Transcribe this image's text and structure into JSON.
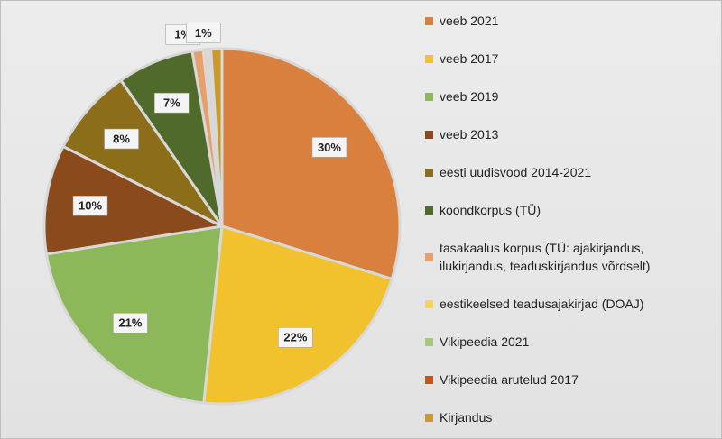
{
  "chart_data": {
    "type": "pie",
    "categories": [
      "veeb 2021",
      "veeb 2017",
      "veeb 2019",
      "veeb 2013",
      "eesti uudisvood 2014-2021",
      "koondkorpus (TÜ)",
      "tasakaalus korpus (TÜ: ajakirjandus, ilukirjandus, teaduskirjandus võrdselt)",
      "eestikeelsed teadusajakirjad (DOAJ)",
      "Vikipeedia 2021",
      "Vikipeedia arutelud 2017",
      "Kirjandus"
    ],
    "values": [
      30,
      22,
      21,
      10,
      8,
      7,
      1,
      0.3,
      0.2,
      0.2,
      1
    ],
    "value_labels": [
      "30%",
      "22%",
      "21%",
      "10%",
      "8%",
      "7%",
      "1%",
      null,
      null,
      null,
      "1%"
    ],
    "colors": [
      "#d9803e",
      "#f2c12e",
      "#8db85a",
      "#8a4a1c",
      "#8c6d1a",
      "#4f6a2b",
      "#e8a06a",
      "#f5d45a",
      "#a5c97a",
      "#c0561f",
      "#c99a2a"
    ],
    "legend": "right"
  }
}
